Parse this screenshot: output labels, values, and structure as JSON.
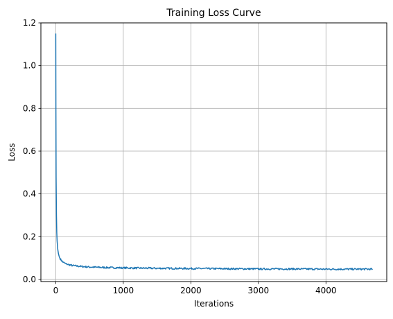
{
  "chart_data": {
    "type": "line",
    "title": "Training Loss Curve",
    "xlabel": "Iterations",
    "ylabel": "Loss",
    "xlim": [
      -220,
      4900
    ],
    "ylim": [
      -0.01,
      1.2
    ],
    "xticks": [
      0,
      1000,
      2000,
      3000,
      4000
    ],
    "xtick_labels": [
      "0",
      "1000",
      "2000",
      "3000",
      "4000"
    ],
    "yticks": [
      0.0,
      0.2,
      0.4,
      0.6,
      0.8,
      1.0,
      1.2
    ],
    "ytick_labels": [
      "0.0",
      "0.2",
      "0.4",
      "0.6",
      "0.8",
      "1.0",
      "1.2"
    ],
    "grid": true,
    "legend": "none",
    "series_color": "#1f77b4",
    "series": [
      {
        "x": [
          0,
          2,
          5,
          10,
          15,
          20,
          30,
          40,
          50,
          60,
          80,
          100,
          125,
          150,
          200,
          250,
          300,
          400,
          500,
          600,
          700,
          800,
          1000,
          1200,
          1500,
          2000,
          2500,
          3000,
          3500,
          4000,
          4500,
          4690
        ],
        "y": [
          1.15,
          0.8,
          0.48,
          0.3,
          0.22,
          0.18,
          0.14,
          0.12,
          0.108,
          0.1,
          0.09,
          0.083,
          0.077,
          0.073,
          0.068,
          0.065,
          0.063,
          0.06,
          0.058,
          0.057,
          0.056,
          0.055,
          0.054,
          0.053,
          0.052,
          0.051,
          0.05,
          0.049,
          0.049,
          0.048,
          0.048,
          0.048
        ],
        "noise": 0.004
      }
    ]
  }
}
